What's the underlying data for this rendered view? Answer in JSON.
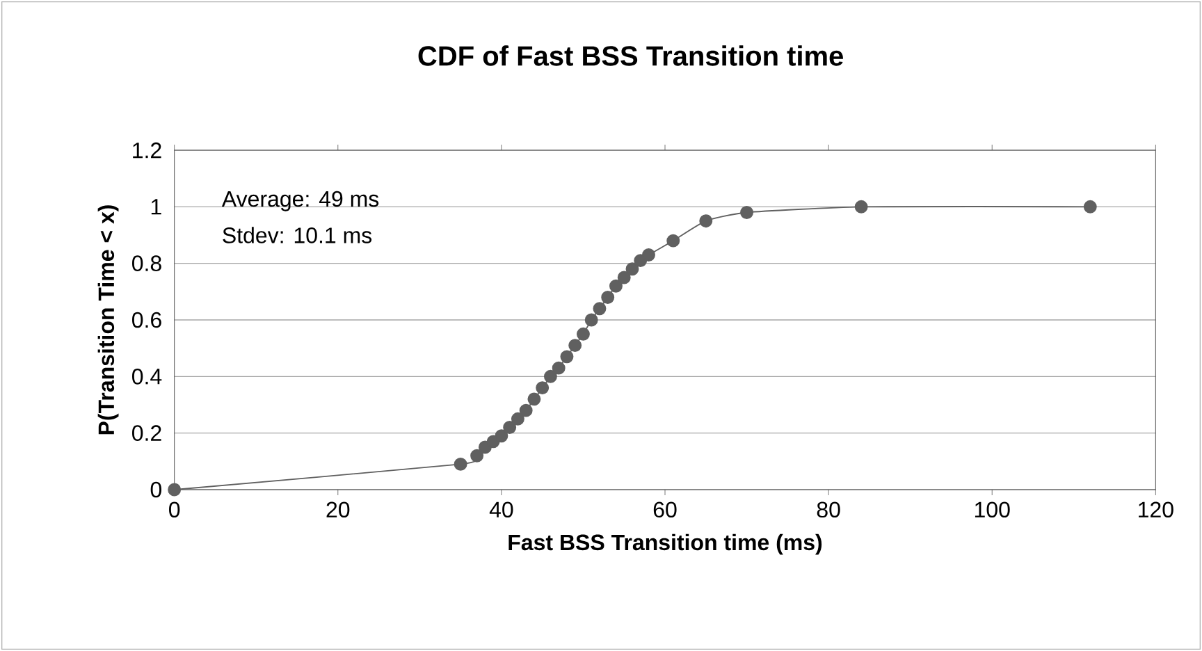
{
  "chart_data": {
    "type": "line",
    "title": "CDF of Fast BSS Transition time",
    "xlabel": "Fast BSS Transition time (ms)",
    "ylabel": "P(Transition Time < x)",
    "annotations": [
      "Average: 49 ms",
      "Stdev: 10.1 ms"
    ],
    "x": [
      0,
      35,
      37,
      38,
      39,
      40,
      41,
      42,
      43,
      44,
      45,
      46,
      47,
      48,
      49,
      50,
      51,
      52,
      53,
      54,
      55,
      56,
      57,
      58,
      61,
      65,
      70,
      84,
      112
    ],
    "series": [
      {
        "color": "#606060",
        "values": [
          0,
          0.09,
          0.12,
          0.15,
          0.17,
          0.19,
          0.22,
          0.25,
          0.28,
          0.32,
          0.36,
          0.4,
          0.43,
          0.47,
          0.51,
          0.55,
          0.6,
          0.64,
          0.68,
          0.72,
          0.75,
          0.78,
          0.81,
          0.83,
          0.88,
          0.95,
          0.98,
          1,
          1
        ]
      }
    ],
    "xlim": [
      0,
      120
    ],
    "xticks": [
      0,
      20,
      40,
      60,
      80,
      100,
      120
    ],
    "ylim": [
      0,
      1.2
    ],
    "yticks": [
      0,
      0.2,
      0.4,
      0.6,
      0.8,
      1,
      1.2
    ],
    "grid": "y",
    "marker": "circle",
    "line_style": "solid"
  }
}
